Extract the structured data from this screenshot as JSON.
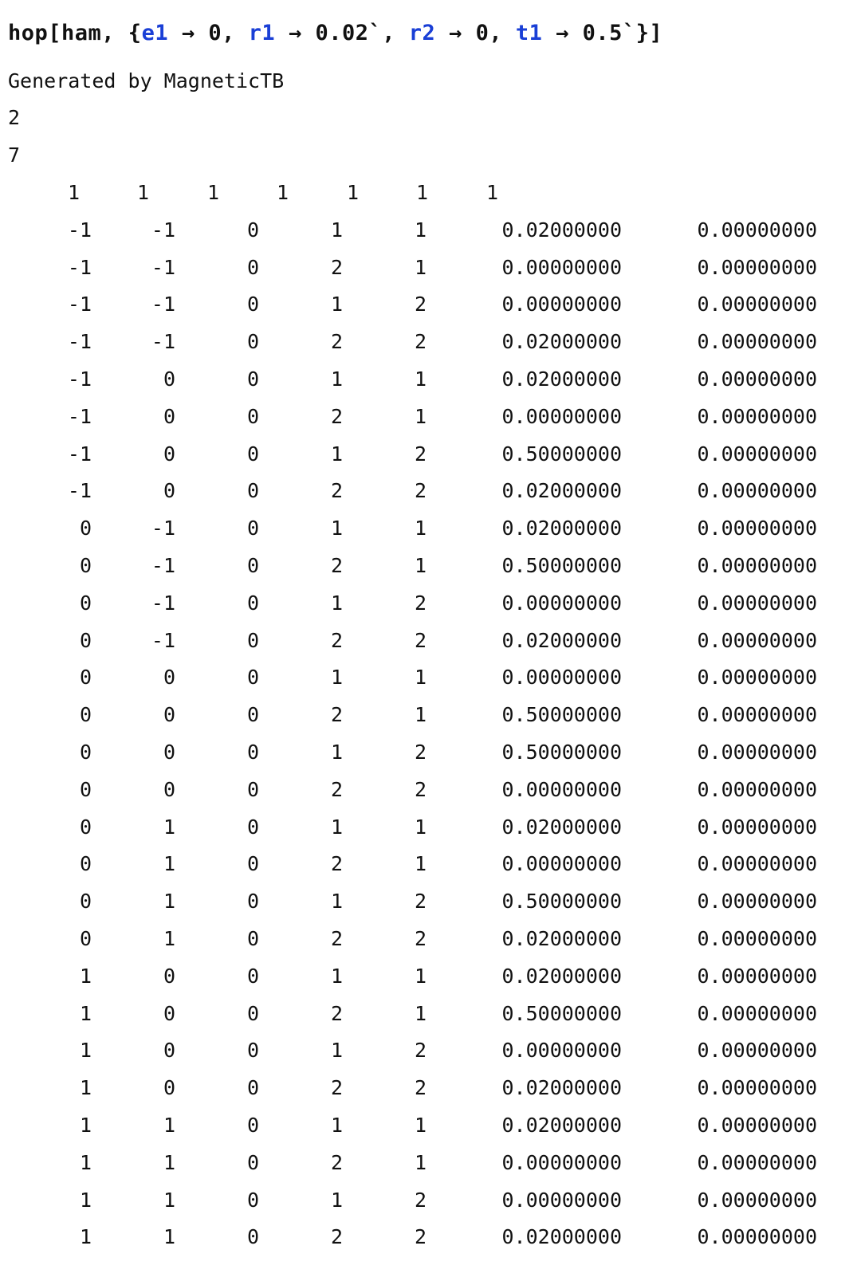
{
  "input": {
    "head": "hop[ham, {",
    "rules": [
      {
        "sym": "e1",
        "arrow": "→",
        "val": "0"
      },
      {
        "sym": "r1",
        "arrow": "→",
        "val": "0.02`"
      },
      {
        "sym": "r2",
        "arrow": "→",
        "val": "0"
      },
      {
        "sym": "t1",
        "arrow": "→",
        "val": "0.5`"
      }
    ],
    "tail": "}]"
  },
  "output": {
    "header_text": "Generated by MagneticTB",
    "num_wann": "2",
    "nrpts": "7",
    "degeneracy": [
      "1",
      "1",
      "1",
      "1",
      "1",
      "1",
      "1"
    ],
    "rows": [
      [
        "-1",
        "-1",
        "0",
        "1",
        "1",
        "0.02000000",
        "0.00000000"
      ],
      [
        "-1",
        "-1",
        "0",
        "2",
        "1",
        "0.00000000",
        "0.00000000"
      ],
      [
        "-1",
        "-1",
        "0",
        "1",
        "2",
        "0.00000000",
        "0.00000000"
      ],
      [
        "-1",
        "-1",
        "0",
        "2",
        "2",
        "0.02000000",
        "0.00000000"
      ],
      [
        "-1",
        "0",
        "0",
        "1",
        "1",
        "0.02000000",
        "0.00000000"
      ],
      [
        "-1",
        "0",
        "0",
        "2",
        "1",
        "0.00000000",
        "0.00000000"
      ],
      [
        "-1",
        "0",
        "0",
        "1",
        "2",
        "0.50000000",
        "0.00000000"
      ],
      [
        "-1",
        "0",
        "0",
        "2",
        "2",
        "0.02000000",
        "0.00000000"
      ],
      [
        "0",
        "-1",
        "0",
        "1",
        "1",
        "0.02000000",
        "0.00000000"
      ],
      [
        "0",
        "-1",
        "0",
        "2",
        "1",
        "0.50000000",
        "0.00000000"
      ],
      [
        "0",
        "-1",
        "0",
        "1",
        "2",
        "0.00000000",
        "0.00000000"
      ],
      [
        "0",
        "-1",
        "0",
        "2",
        "2",
        "0.02000000",
        "0.00000000"
      ],
      [
        "0",
        "0",
        "0",
        "1",
        "1",
        "0.00000000",
        "0.00000000"
      ],
      [
        "0",
        "0",
        "0",
        "2",
        "1",
        "0.50000000",
        "0.00000000"
      ],
      [
        "0",
        "0",
        "0",
        "1",
        "2",
        "0.50000000",
        "0.00000000"
      ],
      [
        "0",
        "0",
        "0",
        "2",
        "2",
        "0.00000000",
        "0.00000000"
      ],
      [
        "0",
        "1",
        "0",
        "1",
        "1",
        "0.02000000",
        "0.00000000"
      ],
      [
        "0",
        "1",
        "0",
        "2",
        "1",
        "0.00000000",
        "0.00000000"
      ],
      [
        "0",
        "1",
        "0",
        "1",
        "2",
        "0.50000000",
        "0.00000000"
      ],
      [
        "0",
        "1",
        "0",
        "2",
        "2",
        "0.02000000",
        "0.00000000"
      ],
      [
        "1",
        "0",
        "0",
        "1",
        "1",
        "0.02000000",
        "0.00000000"
      ],
      [
        "1",
        "0",
        "0",
        "2",
        "1",
        "0.50000000",
        "0.00000000"
      ],
      [
        "1",
        "0",
        "0",
        "1",
        "2",
        "0.00000000",
        "0.00000000"
      ],
      [
        "1",
        "0",
        "0",
        "2",
        "2",
        "0.02000000",
        "0.00000000"
      ],
      [
        "1",
        "1",
        "0",
        "1",
        "1",
        "0.02000000",
        "0.00000000"
      ],
      [
        "1",
        "1",
        "0",
        "2",
        "1",
        "0.00000000",
        "0.00000000"
      ],
      [
        "1",
        "1",
        "0",
        "1",
        "2",
        "0.00000000",
        "0.00000000"
      ],
      [
        "1",
        "1",
        "0",
        "2",
        "2",
        "0.02000000",
        "0.00000000"
      ]
    ]
  },
  "colors": {
    "symbol": "#1a3fd6",
    "text": "#111111",
    "background": "#ffffff"
  }
}
